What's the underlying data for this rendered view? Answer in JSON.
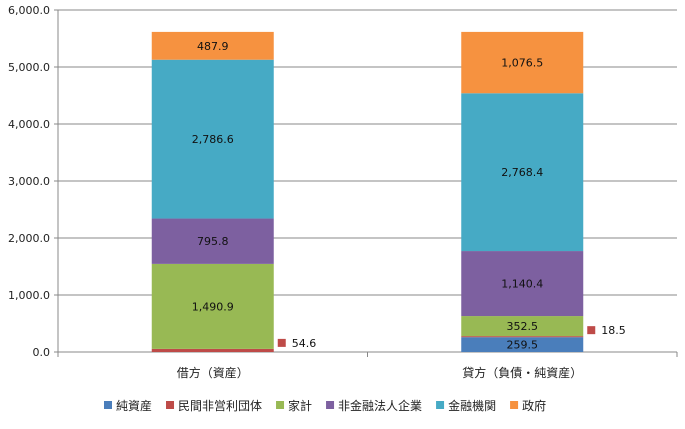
{
  "chart_data": {
    "type": "bar",
    "stacked": true,
    "categories": [
      "借方（資産）",
      "貸方（負債・純資産）"
    ],
    "series": [
      {
        "name": "純資産",
        "color": "#4a7ebb",
        "values": [
          0,
          259.5
        ],
        "labels": [
          "",
          "259.5"
        ]
      },
      {
        "name": "民間非営利団体",
        "color": "#be4b48",
        "values": [
          54.6,
          18.5
        ],
        "labels": [
          "54.6",
          "18.5"
        ],
        "label_style": "marker"
      },
      {
        "name": "家計",
        "color": "#98b954",
        "values": [
          1490.9,
          352.5
        ],
        "labels": [
          "1,490.9",
          "352.5"
        ]
      },
      {
        "name": "非金融法人企業",
        "color": "#7d60a0",
        "values": [
          795.8,
          1140.4
        ],
        "labels": [
          "795.8",
          "1,140.4"
        ]
      },
      {
        "name": "金融機関",
        "color": "#46aac5",
        "values": [
          2786.6,
          2768.4
        ],
        "labels": [
          "2,786.6",
          "2,768.4"
        ]
      },
      {
        "name": "政府",
        "color": "#f69240",
        "values": [
          487.9,
          1076.5
        ],
        "labels": [
          "487.9",
          "1,076.5"
        ]
      }
    ],
    "ylim": [
      0,
      6000
    ],
    "yticks": [
      0,
      1000,
      2000,
      3000,
      4000,
      5000,
      6000
    ],
    "ytick_labels": [
      "0.0",
      "1,000.0",
      "2,000.0",
      "3,000.0",
      "4,000.0",
      "5,000.0",
      "6,000.0"
    ],
    "grid": true,
    "legend_position": "bottom",
    "title": "",
    "xlabel": "",
    "ylabel": ""
  }
}
